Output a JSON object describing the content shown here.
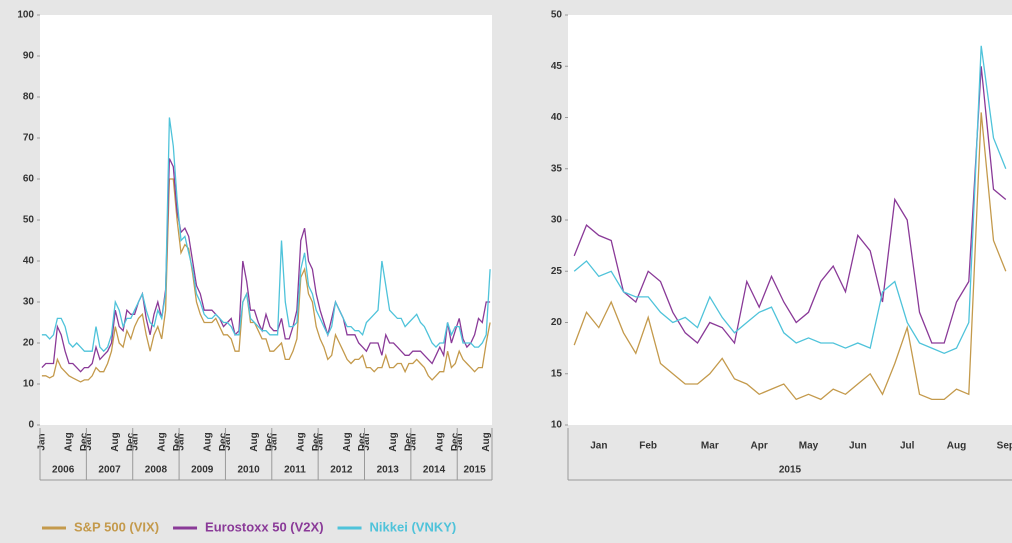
{
  "chart_data": [
    {
      "type": "line",
      "categories": [
        "Jan",
        null,
        null,
        null,
        null,
        null,
        null,
        "Aug",
        null,
        null,
        null,
        "Dec",
        "Jan",
        null,
        null,
        null,
        null,
        null,
        null,
        "Aug",
        null,
        null,
        null,
        "Dec",
        "Jan",
        null,
        null,
        null,
        null,
        null,
        null,
        "Aug",
        null,
        null,
        null,
        "Dec",
        "Jan",
        null,
        null,
        null,
        null,
        null,
        null,
        "Aug",
        null,
        null,
        null,
        "Dec",
        "Jan",
        null,
        null,
        null,
        null,
        null,
        null,
        "Aug",
        null,
        null,
        null,
        "Dec",
        "Jan",
        null,
        null,
        null,
        null,
        null,
        null,
        "Aug",
        null,
        null,
        null,
        "Dec",
        "Jan",
        null,
        null,
        null,
        null,
        null,
        null,
        "Aug",
        null,
        null,
        null,
        "Dec",
        "Jan",
        null,
        null,
        null,
        null,
        null,
        null,
        "Aug",
        null,
        null,
        null,
        "Dec",
        "Jan",
        null,
        null,
        null,
        null,
        null,
        null,
        "Aug",
        null,
        null,
        null,
        "Dec",
        "Jan",
        null,
        null,
        null,
        null,
        null,
        null,
        "Aug",
        null
      ],
      "year_labels": [
        "2006",
        "2007",
        "2008",
        "2009",
        "2010",
        "2011",
        "2012",
        "2013",
        "2014",
        "2015"
      ],
      "ylim": [
        0,
        100
      ],
      "yticks": [
        0,
        10,
        20,
        30,
        40,
        50,
        60,
        70,
        80,
        90,
        100
      ],
      "grid": false,
      "series": [
        {
          "name": "S&P 500 (VIX)",
          "color": "#c49a4c",
          "values": [
            12,
            12,
            11.5,
            12,
            16,
            14,
            13,
            12,
            11.5,
            11,
            10.5,
            11,
            11,
            12,
            14,
            13,
            13,
            15,
            18,
            24,
            20,
            19,
            23,
            21,
            24,
            26,
            27,
            22,
            18,
            22,
            24,
            21,
            28,
            60,
            60,
            50,
            42,
            44,
            43,
            37,
            30,
            27,
            25,
            25,
            25,
            26,
            24,
            22,
            22,
            21,
            18,
            18,
            30,
            32,
            25,
            25,
            23,
            21,
            21,
            18,
            18,
            19,
            20,
            16,
            16,
            18,
            21,
            36,
            38,
            32,
            30,
            24,
            21,
            19,
            16,
            17,
            22,
            20,
            18,
            16,
            15,
            16,
            16,
            17,
            14,
            14,
            13,
            14,
            14,
            17,
            14,
            14,
            15,
            15,
            13,
            15,
            15,
            16,
            15,
            14,
            12,
            11,
            12,
            13,
            13,
            18,
            14,
            15,
            18,
            16,
            15,
            14,
            13,
            14,
            14,
            20,
            25
          ]
        },
        {
          "name": "Eurostoxx 50 (V2X)",
          "color": "#8a3a98",
          "values": [
            14,
            15,
            15,
            15,
            24,
            22,
            18,
            15,
            15,
            14,
            13,
            14,
            14,
            15,
            19,
            16,
            17,
            18,
            20,
            28,
            24,
            23,
            28,
            27,
            27,
            30,
            32,
            26,
            22,
            27,
            30,
            26,
            33,
            65,
            63,
            52,
            47,
            48,
            46,
            40,
            34,
            32,
            28,
            28,
            28,
            27,
            26,
            24,
            25,
            26,
            22,
            23,
            40,
            35,
            28,
            28,
            25,
            23,
            27,
            24,
            23,
            23,
            26,
            21,
            21,
            24,
            28,
            45,
            48,
            40,
            38,
            32,
            28,
            25,
            22,
            26,
            30,
            28,
            26,
            22,
            22,
            22,
            20,
            19,
            18,
            20,
            20,
            20,
            17,
            22,
            20,
            20,
            19,
            18,
            17,
            17,
            18,
            18,
            18,
            17,
            16,
            15,
            17,
            19,
            17,
            25,
            20,
            23,
            26,
            21,
            19,
            20,
            22,
            26,
            25,
            30,
            30
          ]
        },
        {
          "name": "Nikkei (VNKY)",
          "color": "#4fc3da",
          "values": [
            22,
            22,
            21,
            22,
            26,
            26,
            24,
            20,
            19,
            20,
            19,
            18,
            18,
            18,
            24,
            19,
            18,
            19,
            22,
            30,
            28,
            24,
            26,
            26,
            28,
            30,
            32,
            28,
            25,
            24,
            28,
            26,
            32,
            75,
            68,
            55,
            45,
            46,
            42,
            38,
            32,
            30,
            27,
            26,
            26,
            27,
            26,
            25,
            25,
            24,
            22,
            22,
            30,
            32,
            26,
            25,
            24,
            23,
            23,
            22,
            22,
            22,
            45,
            30,
            24,
            24,
            25,
            38,
            42,
            34,
            32,
            28,
            26,
            24,
            22,
            24,
            30,
            28,
            26,
            24,
            24,
            23,
            23,
            22,
            25,
            26,
            27,
            28,
            40,
            34,
            28,
            27,
            26,
            26,
            24,
            25,
            26,
            27,
            25,
            24,
            22,
            20,
            19,
            20,
            20,
            25,
            22,
            24,
            24,
            20,
            20,
            20,
            19,
            19,
            20,
            22,
            38
          ]
        }
      ]
    },
    {
      "type": "line",
      "categories": [
        null,
        null,
        "Jan",
        null,
        null,
        null,
        "Feb",
        null,
        null,
        null,
        null,
        "Mar",
        null,
        null,
        null,
        "Apr",
        null,
        null,
        null,
        "May",
        null,
        null,
        null,
        "Jun",
        null,
        null,
        null,
        "Jul",
        null,
        null,
        null,
        "Aug",
        null,
        null,
        null,
        "Sep"
      ],
      "year_labels": [
        "2015"
      ],
      "ylim": [
        10,
        50
      ],
      "yticks": [
        10,
        15,
        20,
        25,
        30,
        35,
        40,
        45,
        50
      ],
      "grid": false,
      "series": [
        {
          "name": "S&P 500 (VIX)",
          "color": "#c49a4c",
          "values": [
            17.8,
            21,
            19.5,
            22,
            19,
            17,
            20.5,
            16,
            15,
            14,
            14,
            15,
            16.5,
            14.5,
            14,
            13,
            13.5,
            14,
            12.5,
            13,
            12.5,
            13.5,
            13,
            14,
            15,
            13,
            16,
            19.5,
            13,
            12.5,
            12.5,
            13.5,
            13,
            40.5,
            28,
            25
          ]
        },
        {
          "name": "Eurostoxx 50 (V2X)",
          "color": "#8a3a98",
          "values": [
            26.5,
            29.5,
            28.5,
            28,
            23,
            22,
            25,
            24,
            21,
            19,
            18,
            20,
            19.5,
            18,
            24,
            21.5,
            24.5,
            22,
            20,
            21,
            24,
            25.5,
            23,
            28.5,
            27,
            22,
            32,
            30,
            21,
            18,
            18,
            22,
            24,
            45,
            33,
            32
          ]
        },
        {
          "name": "Nikkei (VNKY)",
          "color": "#4fc3da",
          "values": [
            25,
            26,
            24.5,
            25,
            23,
            22.5,
            22.5,
            21,
            20,
            20.5,
            19.5,
            22.5,
            20.5,
            19,
            20,
            21,
            21.5,
            19,
            18,
            18.5,
            18,
            18,
            17.5,
            18,
            17.5,
            23,
            24,
            20,
            18,
            17.5,
            17,
            17.5,
            20,
            47,
            38,
            35
          ]
        }
      ]
    }
  ]
}
